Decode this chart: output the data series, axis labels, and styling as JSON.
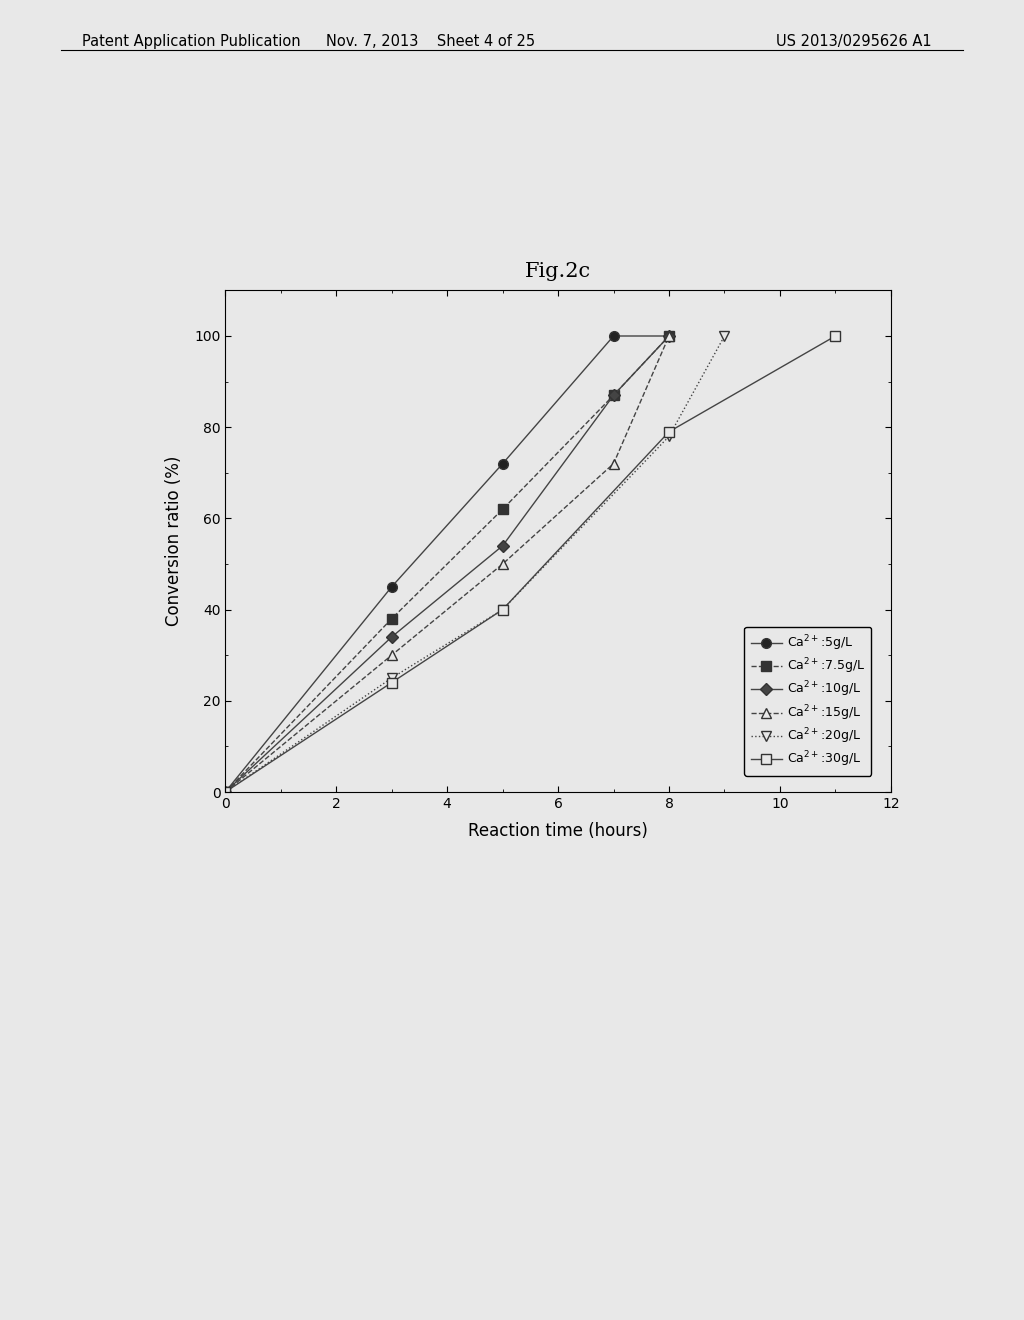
{
  "title": "Fig.2c",
  "xlabel": "Reaction time (hours)",
  "ylabel": "Conversion ratio (%)",
  "xlim": [
    0,
    12
  ],
  "ylim": [
    0,
    110
  ],
  "xticks": [
    0,
    2,
    4,
    6,
    8,
    10,
    12
  ],
  "yticks": [
    0,
    20,
    40,
    60,
    80,
    100
  ],
  "series": [
    {
      "label": "Ca$^{2+}$:5g/L",
      "x": [
        0,
        3,
        5,
        7,
        8
      ],
      "y": [
        0,
        45,
        72,
        100,
        100
      ],
      "color": "#333333",
      "marker": "o",
      "marker_filled": true,
      "linestyle": "-",
      "markersize": 7
    },
    {
      "label": "Ca$^{2+}$:7.5g/L",
      "x": [
        0,
        3,
        5,
        7,
        8
      ],
      "y": [
        0,
        38,
        62,
        87,
        100
      ],
      "color": "#333333",
      "marker": "s",
      "marker_filled": true,
      "linestyle": "--",
      "markersize": 7
    },
    {
      "label": "Ca$^{2+}$:10g/L",
      "x": [
        0,
        3,
        5,
        7,
        8
      ],
      "y": [
        0,
        34,
        54,
        87,
        100
      ],
      "color": "#555555",
      "marker": "D",
      "marker_filled": true,
      "linestyle": "-",
      "markersize": 6
    },
    {
      "label": "Ca$^{2+}$:15g/L",
      "x": [
        0,
        3,
        5,
        7,
        8
      ],
      "y": [
        0,
        30,
        50,
        72,
        100
      ],
      "color": "#555555",
      "marker": "^",
      "marker_filled": false,
      "linestyle": "--",
      "markersize": 7
    },
    {
      "label": "Ca$^{2+}$:20g/L",
      "x": [
        0,
        3,
        5,
        8,
        9
      ],
      "y": [
        0,
        25,
        40,
        78,
        100
      ],
      "color": "#777777",
      "marker": "v",
      "marker_filled": false,
      "linestyle": ":",
      "markersize": 7
    },
    {
      "label": "Ca$^{2+}$:30g/L",
      "x": [
        0,
        3,
        5,
        8,
        11
      ],
      "y": [
        0,
        24,
        40,
        79,
        100
      ],
      "color": "#555555",
      "marker": "s",
      "marker_filled": false,
      "linestyle": "-",
      "markersize": 7
    }
  ],
  "background_color": "#f0f0f0",
  "header_text_left": "Patent Application Publication",
  "header_text_center": "Nov. 7, 2013    Sheet 4 of 25",
  "header_text_right": "US 2013/0295626 A1"
}
